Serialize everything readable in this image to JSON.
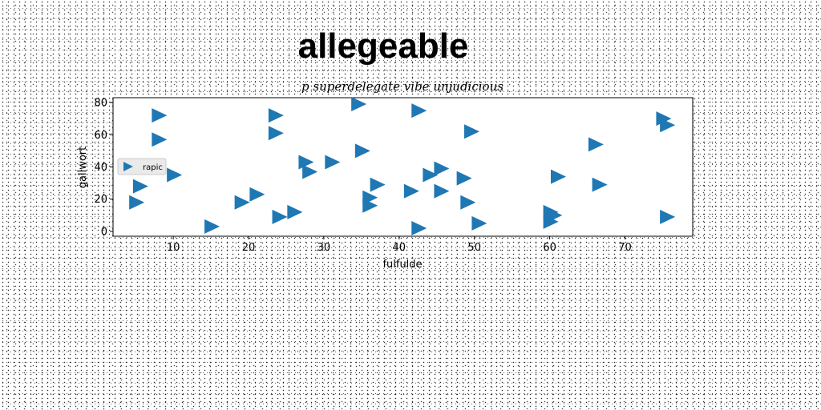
{
  "chart_data": {
    "type": "scatter",
    "title": "allegeable",
    "subtitle": "p superdelegate vibe unjudicious",
    "xlabel": "fulfulde",
    "ylabel": "gallwort",
    "xlim": [
      2,
      79
    ],
    "ylim": [
      -3,
      83
    ],
    "xticks": [
      10,
      20,
      30,
      40,
      50,
      60,
      70
    ],
    "yticks": [
      0,
      20,
      40,
      60,
      80
    ],
    "grid": false,
    "legend_position": "center-left",
    "series": [
      {
        "name": "rapic",
        "color": "#1f77b4",
        "marker": "triangle-right",
        "points": [
          [
            8,
            72
          ],
          [
            8,
            57
          ],
          [
            5.5,
            28
          ],
          [
            5,
            18
          ],
          [
            10,
            35
          ],
          [
            15,
            3
          ],
          [
            19,
            18
          ],
          [
            21,
            23
          ],
          [
            23.5,
            72
          ],
          [
            23.5,
            61
          ],
          [
            24,
            9
          ],
          [
            26,
            12
          ],
          [
            27.5,
            43
          ],
          [
            28,
            37
          ],
          [
            31,
            43
          ],
          [
            34.5,
            79
          ],
          [
            35,
            50
          ],
          [
            36,
            21
          ],
          [
            36,
            16
          ],
          [
            37,
            29
          ],
          [
            41.5,
            25
          ],
          [
            42.5,
            2
          ],
          [
            42.5,
            75
          ],
          [
            44,
            35
          ],
          [
            45.5,
            39
          ],
          [
            45.5,
            25
          ],
          [
            48.5,
            33
          ],
          [
            49,
            18
          ],
          [
            49.5,
            62
          ],
          [
            50.5,
            5
          ],
          [
            60,
            12
          ],
          [
            60,
            6
          ],
          [
            60.5,
            10
          ],
          [
            61,
            34
          ],
          [
            66,
            54
          ],
          [
            66.5,
            29
          ],
          [
            75,
            70
          ],
          [
            75.5,
            66
          ],
          [
            75.5,
            9
          ]
        ]
      }
    ]
  }
}
